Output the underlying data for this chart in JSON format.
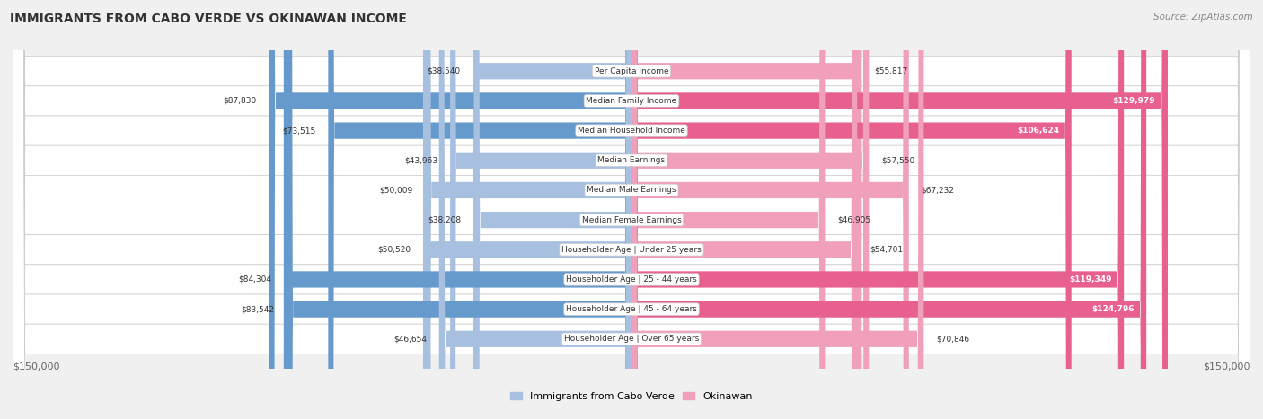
{
  "title": "IMMIGRANTS FROM CABO VERDE VS OKINAWAN INCOME",
  "source": "Source: ZipAtlas.com",
  "categories": [
    "Per Capita Income",
    "Median Family Income",
    "Median Household Income",
    "Median Earnings",
    "Median Male Earnings",
    "Median Female Earnings",
    "Householder Age | Under 25 years",
    "Householder Age | 25 - 44 years",
    "Householder Age | 45 - 64 years",
    "Householder Age | Over 65 years"
  ],
  "cabo_verde_values": [
    38540,
    87830,
    73515,
    43963,
    50009,
    38208,
    50520,
    84304,
    83542,
    46654
  ],
  "okinawan_values": [
    55817,
    129979,
    106624,
    57550,
    67232,
    46905,
    54701,
    119349,
    124796,
    70846
  ],
  "cabo_verde_labels": [
    "$38,540",
    "$87,830",
    "$73,515",
    "$43,963",
    "$50,009",
    "$38,208",
    "$50,520",
    "$84,304",
    "$83,542",
    "$46,654"
  ],
  "okinawan_labels": [
    "$55,817",
    "$129,979",
    "$106,624",
    "$57,550",
    "$67,232",
    "$46,905",
    "$54,701",
    "$119,349",
    "$124,796",
    "$70,846"
  ],
  "cabo_verde_color_light": "#a8c0e0",
  "cabo_verde_color_dark": "#6699cc",
  "okinawan_color_light": "#f0a0bb",
  "okinawan_color_dark": "#e86090",
  "max_value": 150000,
  "x_axis_label_left": "$150,000",
  "x_axis_label_right": "$150,000",
  "legend_cabo_verde": "Immigrants from Cabo Verde",
  "legend_okinawan": "Okinawan",
  "background_color": "#f0f0f0",
  "row_background_even": "#f8f8f8",
  "row_background_odd": "#e8e8e8",
  "cabo_dark_threshold": 70000,
  "ok_dark_threshold": 100000
}
